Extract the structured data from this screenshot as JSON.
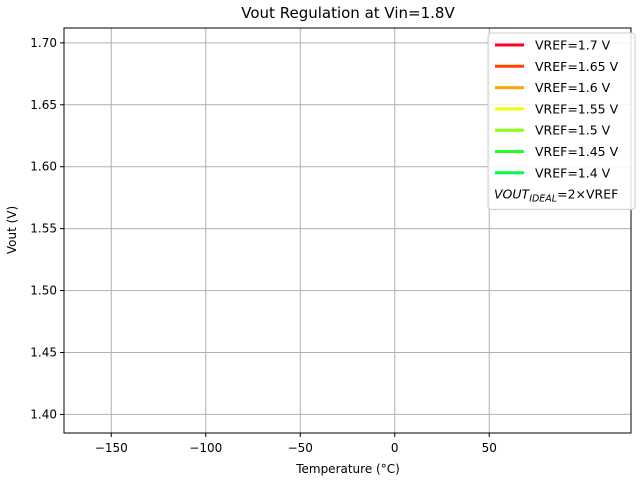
{
  "chart_data": {
    "type": "line",
    "title": "Vout Regulation at Vin=1.8V",
    "xlabel": "Temperature (°C)",
    "ylabel": "Vout (V)",
    "xlim": [
      -175,
      125
    ],
    "ylim": [
      1.385,
      1.712
    ],
    "xticks": [
      -150,
      -100,
      -50,
      0,
      50
    ],
    "xtick_labels": [
      "−150",
      "−100",
      "−50",
      "0",
      "50"
    ],
    "yticks": [
      1.4,
      1.45,
      1.5,
      1.55,
      1.6,
      1.65,
      1.7
    ],
    "ytick_labels": [
      "1.40",
      "1.45",
      "1.50",
      "1.55",
      "1.60",
      "1.65",
      "1.70"
    ],
    "grid": true,
    "legend_position": "top-right",
    "series": [
      {
        "name": "VREF=1.7 V",
        "color": "#ff0022",
        "x": [],
        "y": []
      },
      {
        "name": "VREF=1.65 V",
        "color": "#ff4400",
        "x": [],
        "y": []
      },
      {
        "name": "VREF=1.6 V",
        "color": "#ffa500",
        "x": [],
        "y": []
      },
      {
        "name": "VREF=1.55 V",
        "color": "#eeff00",
        "x": [],
        "y": []
      },
      {
        "name": "VREF=1.5 V",
        "color": "#88ff11",
        "x": [],
        "y": []
      },
      {
        "name": "VREF=1.45 V",
        "color": "#22ff22",
        "x": [],
        "y": []
      },
      {
        "name": "VREF=1.4 V",
        "color": "#00ff44",
        "x": [],
        "y": []
      }
    ],
    "legend_note": {
      "main": "VOUT",
      "sub": "IDEAL",
      "rest": "=2×VREF"
    }
  }
}
